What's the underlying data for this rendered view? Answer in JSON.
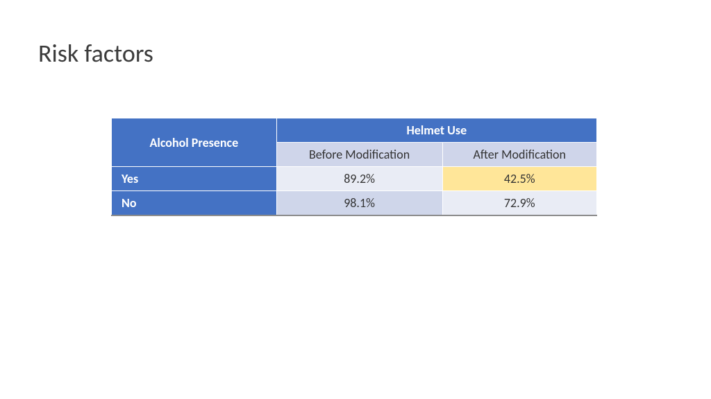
{
  "title": "Risk factors",
  "table": {
    "corner_label": "Alcohol Presence",
    "span_header": "Helmet Use",
    "columns": [
      "Before Modification",
      "After Modification"
    ],
    "rows": [
      {
        "label": "Yes",
        "values": [
          "89.2%",
          "42.5%"
        ],
        "highlight": [
          false,
          true
        ]
      },
      {
        "label": "No",
        "values": [
          "98.1%",
          "72.9%"
        ],
        "highlight": [
          false,
          false
        ]
      }
    ],
    "colors": {
      "header_bg": "#4472c4",
      "header_fg": "#ffffff",
      "subheader_bg": "#cfd5ea",
      "cell_light": "#e9ecf5",
      "cell_dark": "#cfd6ea",
      "highlight": "#ffe699",
      "title_color": "#3b3b3b",
      "border": "#ffffff",
      "bottom_border": "#8a8a8a"
    },
    "font_size_pt": 13,
    "title_font_size_pt": 27,
    "col_widths_pct": [
      34,
      33,
      33
    ]
  }
}
